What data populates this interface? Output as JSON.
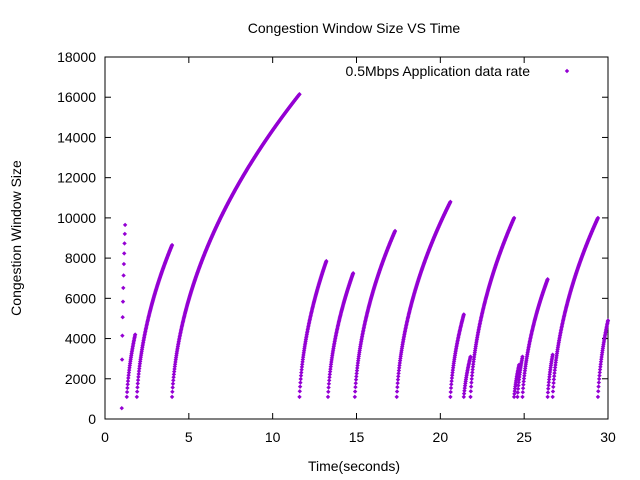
{
  "chart_data": {
    "type": "scatter",
    "title": "Congestion Window Size VS Time",
    "xlabel": "Time(seconds)",
    "ylabel": "Congestion Window Size",
    "xlim": [
      0,
      30
    ],
    "ylim": [
      0,
      18000
    ],
    "xticks": [
      "0",
      "5",
      "10",
      "15",
      "20",
      "25",
      "30"
    ],
    "yticks": [
      "0",
      "2000",
      "4000",
      "6000",
      "8000",
      "10000",
      "12000",
      "14000",
      "16000",
      "18000"
    ],
    "grid": false,
    "legend_position": "top-right",
    "series": [
      {
        "name": "0.5Mbps Application data rate",
        "color": "#9400d3",
        "segments": [
          {
            "t_start": 1.0,
            "t_end": 1.2,
            "w_start": 540,
            "w_end": 9650
          },
          {
            "t_start": 1.3,
            "t_end": 1.8,
            "w_start": 1100,
            "w_end": 4200
          },
          {
            "t_start": 1.9,
            "t_end": 4.0,
            "w_start": 1100,
            "w_end": 8650
          },
          {
            "t_start": 4.0,
            "t_end": 11.6,
            "w_start": 1100,
            "w_end": 16150
          },
          {
            "t_start": 11.6,
            "t_end": 13.2,
            "w_start": 1100,
            "w_end": 7850
          },
          {
            "t_start": 13.3,
            "t_end": 14.8,
            "w_start": 1100,
            "w_end": 7250
          },
          {
            "t_start": 14.9,
            "t_end": 17.3,
            "w_start": 1100,
            "w_end": 9350
          },
          {
            "t_start": 17.4,
            "t_end": 20.6,
            "w_start": 1100,
            "w_end": 10800
          },
          {
            "t_start": 20.6,
            "t_end": 21.4,
            "w_start": 1100,
            "w_end": 5200
          },
          {
            "t_start": 21.4,
            "t_end": 21.8,
            "w_start": 1100,
            "w_end": 3100
          },
          {
            "t_start": 21.8,
            "t_end": 24.4,
            "w_start": 1100,
            "w_end": 10000
          },
          {
            "t_start": 24.4,
            "t_end": 24.7,
            "w_start": 1100,
            "w_end": 2700
          },
          {
            "t_start": 24.6,
            "t_end": 24.9,
            "w_start": 1100,
            "w_end": 3100
          },
          {
            "t_start": 24.9,
            "t_end": 26.4,
            "w_start": 1100,
            "w_end": 6950
          },
          {
            "t_start": 26.4,
            "t_end": 26.7,
            "w_start": 1100,
            "w_end": 3200
          },
          {
            "t_start": 26.7,
            "t_end": 29.4,
            "w_start": 1100,
            "w_end": 10000
          },
          {
            "t_start": 29.4,
            "t_end": 30.0,
            "w_start": 1100,
            "w_end": 4900
          }
        ]
      }
    ]
  }
}
